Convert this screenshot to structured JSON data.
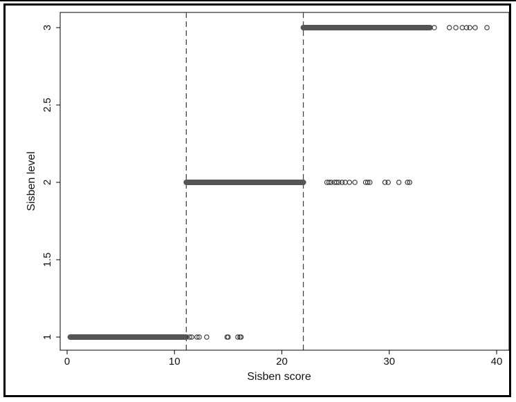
{
  "chart_data": {
    "type": "scatter",
    "xlabel": "Sisben score",
    "ylabel": "Sisben level",
    "xlim": [
      0,
      40
    ],
    "ylim": [
      1,
      3
    ],
    "xticks": [
      0,
      10,
      20,
      30,
      40
    ],
    "yticks": [
      1,
      1.5,
      2,
      2.5,
      3
    ],
    "ytick_labels": [
      "1",
      "1.5",
      "2",
      "2.5",
      "3"
    ],
    "grid": false,
    "cutoffs": [
      11.1,
      22.0
    ],
    "dense_segments": [
      {
        "level": 1,
        "x_start": 0.3,
        "x_end": 11.1
      },
      {
        "level": 2,
        "x_start": 11.1,
        "x_end": 22.0
      },
      {
        "level": 3,
        "x_start": 22.0,
        "x_end": 33.8
      }
    ],
    "series": [
      {
        "level": 1,
        "x": [
          11.4,
          11.6,
          12.1,
          12.3,
          13.0,
          14.9,
          15.0,
          15.9,
          16.1,
          16.2
        ]
      },
      {
        "level": 2,
        "x": [
          24.2,
          24.4,
          24.6,
          24.9,
          25.1,
          25.3,
          25.6,
          25.9,
          26.3,
          26.8,
          27.8,
          28.0,
          28.2,
          29.6,
          29.9,
          30.9,
          31.7,
          31.9
        ]
      },
      {
        "level": 3,
        "x": [
          34.2,
          35.6,
          36.2,
          36.8,
          37.2,
          37.5,
          38.0,
          39.1
        ]
      }
    ],
    "colors": {
      "dense": "#555555",
      "marker": "#333333",
      "line": "#444444"
    }
  }
}
